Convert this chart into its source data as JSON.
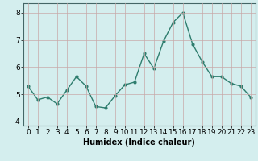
{
  "x": [
    0,
    1,
    2,
    3,
    4,
    5,
    6,
    7,
    8,
    9,
    10,
    11,
    12,
    13,
    14,
    15,
    16,
    17,
    18,
    19,
    20,
    21,
    22,
    23
  ],
  "y": [
    5.3,
    4.8,
    4.9,
    4.65,
    5.15,
    5.65,
    5.3,
    4.55,
    4.5,
    4.95,
    5.35,
    5.45,
    6.5,
    5.95,
    6.95,
    7.65,
    8.0,
    6.85,
    6.2,
    5.65,
    5.65,
    5.4,
    5.3,
    4.9
  ],
  "line_color": "#2e7d6e",
  "marker": ".",
  "marker_size": 4,
  "bg_color": "#d4eeee",
  "grid_color": "#b8d8d8",
  "xlabel": "Humidex (Indice chaleur)",
  "xlim": [
    -0.5,
    23.5
  ],
  "ylim": [
    3.85,
    8.35
  ],
  "yticks": [
    4,
    5,
    6,
    7,
    8
  ],
  "xticks": [
    0,
    1,
    2,
    3,
    4,
    5,
    6,
    7,
    8,
    9,
    10,
    11,
    12,
    13,
    14,
    15,
    16,
    17,
    18,
    19,
    20,
    21,
    22,
    23
  ],
  "label_fontsize": 7,
  "tick_fontsize": 6.5
}
